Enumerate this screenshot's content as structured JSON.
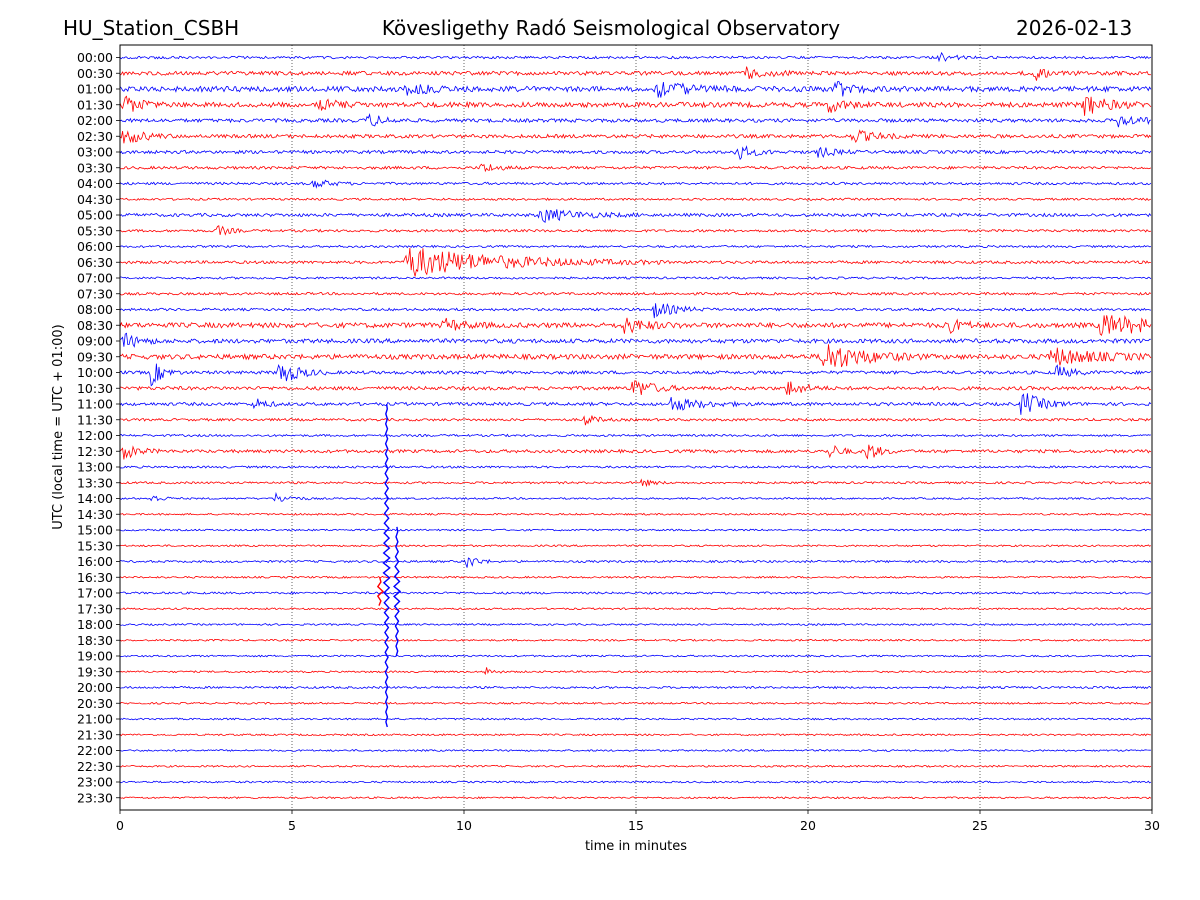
{
  "header": {
    "station": "HU_Station_CSBH",
    "observatory": "Kövesligethy Radó Seismological Observatory",
    "date": "2026-02-13"
  },
  "chart_data": {
    "type": "line",
    "title": "Kövesligethy Radó Seismological Observatory",
    "xlabel": "time in minutes",
    "ylabel": "UTC (local time = UTC + 01:00)",
    "xlim": [
      0,
      30
    ],
    "x_ticks": [
      0,
      5,
      10,
      15,
      20,
      25,
      30
    ],
    "x_gridlines": [
      5,
      10,
      15,
      20,
      25
    ],
    "grid": "vertical dotted",
    "row_interval_minutes": 30,
    "row_labels": [
      "00:00",
      "00:30",
      "01:00",
      "01:30",
      "02:00",
      "02:30",
      "03:00",
      "03:30",
      "04:00",
      "04:30",
      "05:00",
      "05:30",
      "06:00",
      "06:30",
      "07:00",
      "07:30",
      "08:00",
      "08:30",
      "09:00",
      "09:30",
      "10:00",
      "10:30",
      "11:00",
      "11:30",
      "12:00",
      "12:30",
      "13:00",
      "13:30",
      "14:00",
      "14:30",
      "15:00",
      "15:30",
      "16:00",
      "16:30",
      "17:00",
      "17:30",
      "18:00",
      "18:30",
      "19:00",
      "19:30",
      "20:00",
      "20:30",
      "21:00",
      "21:30",
      "22:00",
      "22:30",
      "23:00",
      "23:30"
    ],
    "trace_colors": [
      "#0000ff",
      "#ff0000"
    ],
    "noise_level": [
      0.35,
      0.55,
      0.75,
      0.7,
      0.5,
      0.5,
      0.45,
      0.4,
      0.35,
      0.3,
      0.45,
      0.35,
      0.3,
      0.4,
      0.3,
      0.35,
      0.35,
      0.7,
      0.6,
      0.7,
      0.45,
      0.5,
      0.45,
      0.35,
      0.3,
      0.45,
      0.3,
      0.3,
      0.25,
      0.25,
      0.25,
      0.25,
      0.3,
      0.25,
      0.3,
      0.25,
      0.25,
      0.25,
      0.25,
      0.25,
      0.3,
      0.25,
      0.25,
      0.25,
      0.25,
      0.25,
      0.25,
      0.25
    ],
    "events": [
      {
        "row": 0,
        "minute": 23.8,
        "amplitude": 0.25,
        "duration": 0.4
      },
      {
        "row": 1,
        "minute": 18.2,
        "amplitude": 0.45,
        "duration": 0.5
      },
      {
        "row": 1,
        "minute": 26.5,
        "amplitude": 0.4,
        "duration": 0.6
      },
      {
        "row": 2,
        "minute": 8.3,
        "amplitude": 0.45,
        "duration": 0.5
      },
      {
        "row": 2,
        "minute": 15.5,
        "amplitude": 0.5,
        "duration": 0.8
      },
      {
        "row": 2,
        "minute": 20.8,
        "amplitude": 0.45,
        "duration": 0.4
      },
      {
        "row": 3,
        "minute": 0.1,
        "amplitude": 0.5,
        "duration": 0.4
      },
      {
        "row": 3,
        "minute": 5.8,
        "amplitude": 0.45,
        "duration": 0.4
      },
      {
        "row": 3,
        "minute": 20.6,
        "amplitude": 0.4,
        "duration": 0.4
      },
      {
        "row": 3,
        "minute": 28.0,
        "amplitude": 0.6,
        "duration": 0.6
      },
      {
        "row": 4,
        "minute": 7.2,
        "amplitude": 0.4,
        "duration": 0.4
      },
      {
        "row": 4,
        "minute": 29.0,
        "amplitude": 0.35,
        "duration": 0.6
      },
      {
        "row": 5,
        "minute": 0.1,
        "amplitude": 0.5,
        "duration": 0.5
      },
      {
        "row": 5,
        "minute": 21.3,
        "amplitude": 0.35,
        "duration": 0.6
      },
      {
        "row": 6,
        "minute": 17.9,
        "amplitude": 0.5,
        "duration": 0.4
      },
      {
        "row": 6,
        "minute": 20.3,
        "amplitude": 0.3,
        "duration": 0.4
      },
      {
        "row": 7,
        "minute": 10.5,
        "amplitude": 0.3,
        "duration": 0.4
      },
      {
        "row": 8,
        "minute": 5.6,
        "amplitude": 0.3,
        "duration": 0.4
      },
      {
        "row": 10,
        "minute": 12.2,
        "amplitude": 0.4,
        "duration": 1.0
      },
      {
        "row": 11,
        "minute": 2.8,
        "amplitude": 0.35,
        "duration": 0.3
      },
      {
        "row": 13,
        "minute": 8.3,
        "amplitude": 0.9,
        "duration": 2.5
      },
      {
        "row": 16,
        "minute": 15.5,
        "amplitude": 0.45,
        "duration": 0.6
      },
      {
        "row": 17,
        "minute": 9.4,
        "amplitude": 0.35,
        "duration": 0.5
      },
      {
        "row": 17,
        "minute": 14.6,
        "amplitude": 0.45,
        "duration": 0.6
      },
      {
        "row": 17,
        "minute": 24.0,
        "amplitude": 0.45,
        "duration": 0.4
      },
      {
        "row": 17,
        "minute": 28.5,
        "amplitude": 0.6,
        "duration": 1.4
      },
      {
        "row": 18,
        "minute": 0.1,
        "amplitude": 0.45,
        "duration": 0.4
      },
      {
        "row": 19,
        "minute": 20.4,
        "amplitude": 0.9,
        "duration": 1.0
      },
      {
        "row": 19,
        "minute": 27.0,
        "amplitude": 0.5,
        "duration": 1.2
      },
      {
        "row": 20,
        "minute": 0.9,
        "amplitude": 0.75,
        "duration": 0.3
      },
      {
        "row": 20,
        "minute": 4.6,
        "amplitude": 0.75,
        "duration": 0.5
      },
      {
        "row": 20,
        "minute": 27.2,
        "amplitude": 0.4,
        "duration": 0.4
      },
      {
        "row": 21,
        "minute": 14.9,
        "amplitude": 0.6,
        "duration": 0.5
      },
      {
        "row": 21,
        "minute": 19.4,
        "amplitude": 0.5,
        "duration": 0.4
      },
      {
        "row": 22,
        "minute": 3.9,
        "amplitude": 0.35,
        "duration": 0.3
      },
      {
        "row": 22,
        "minute": 16.0,
        "amplitude": 0.4,
        "duration": 0.8
      },
      {
        "row": 22,
        "minute": 26.2,
        "amplitude": 0.75,
        "duration": 0.5
      },
      {
        "row": 23,
        "minute": 13.5,
        "amplitude": 0.35,
        "duration": 0.3
      },
      {
        "row": 25,
        "minute": 0.1,
        "amplitude": 0.4,
        "duration": 0.4
      },
      {
        "row": 25,
        "minute": 20.6,
        "amplitude": 0.45,
        "duration": 0.3
      },
      {
        "row": 25,
        "minute": 21.7,
        "amplitude": 0.6,
        "duration": 0.3
      },
      {
        "row": 27,
        "minute": 15.1,
        "amplitude": 0.25,
        "duration": 0.3
      },
      {
        "row": 28,
        "minute": 0.9,
        "amplitude": 0.25,
        "duration": 0.3
      },
      {
        "row": 28,
        "minute": 4.5,
        "amplitude": 0.3,
        "duration": 0.4
      },
      {
        "row": 32,
        "minute": 10.0,
        "amplitude": 0.5,
        "duration": 0.3
      },
      {
        "row": 39,
        "minute": 10.6,
        "amplitude": 0.3,
        "duration": 0.2
      }
    ],
    "spikes": [
      {
        "row": 22,
        "minute": 7.75,
        "top": 22.0,
        "bottom": 42.5,
        "color": "#0000ff"
      },
      {
        "row": 30,
        "minute": 8.05,
        "top": 29.8,
        "bottom": 38.0,
        "color": "#0000ff"
      },
      {
        "row": 33,
        "minute": 7.55,
        "top": 33.0,
        "bottom": 34.8,
        "color": "#ff0000"
      }
    ]
  }
}
